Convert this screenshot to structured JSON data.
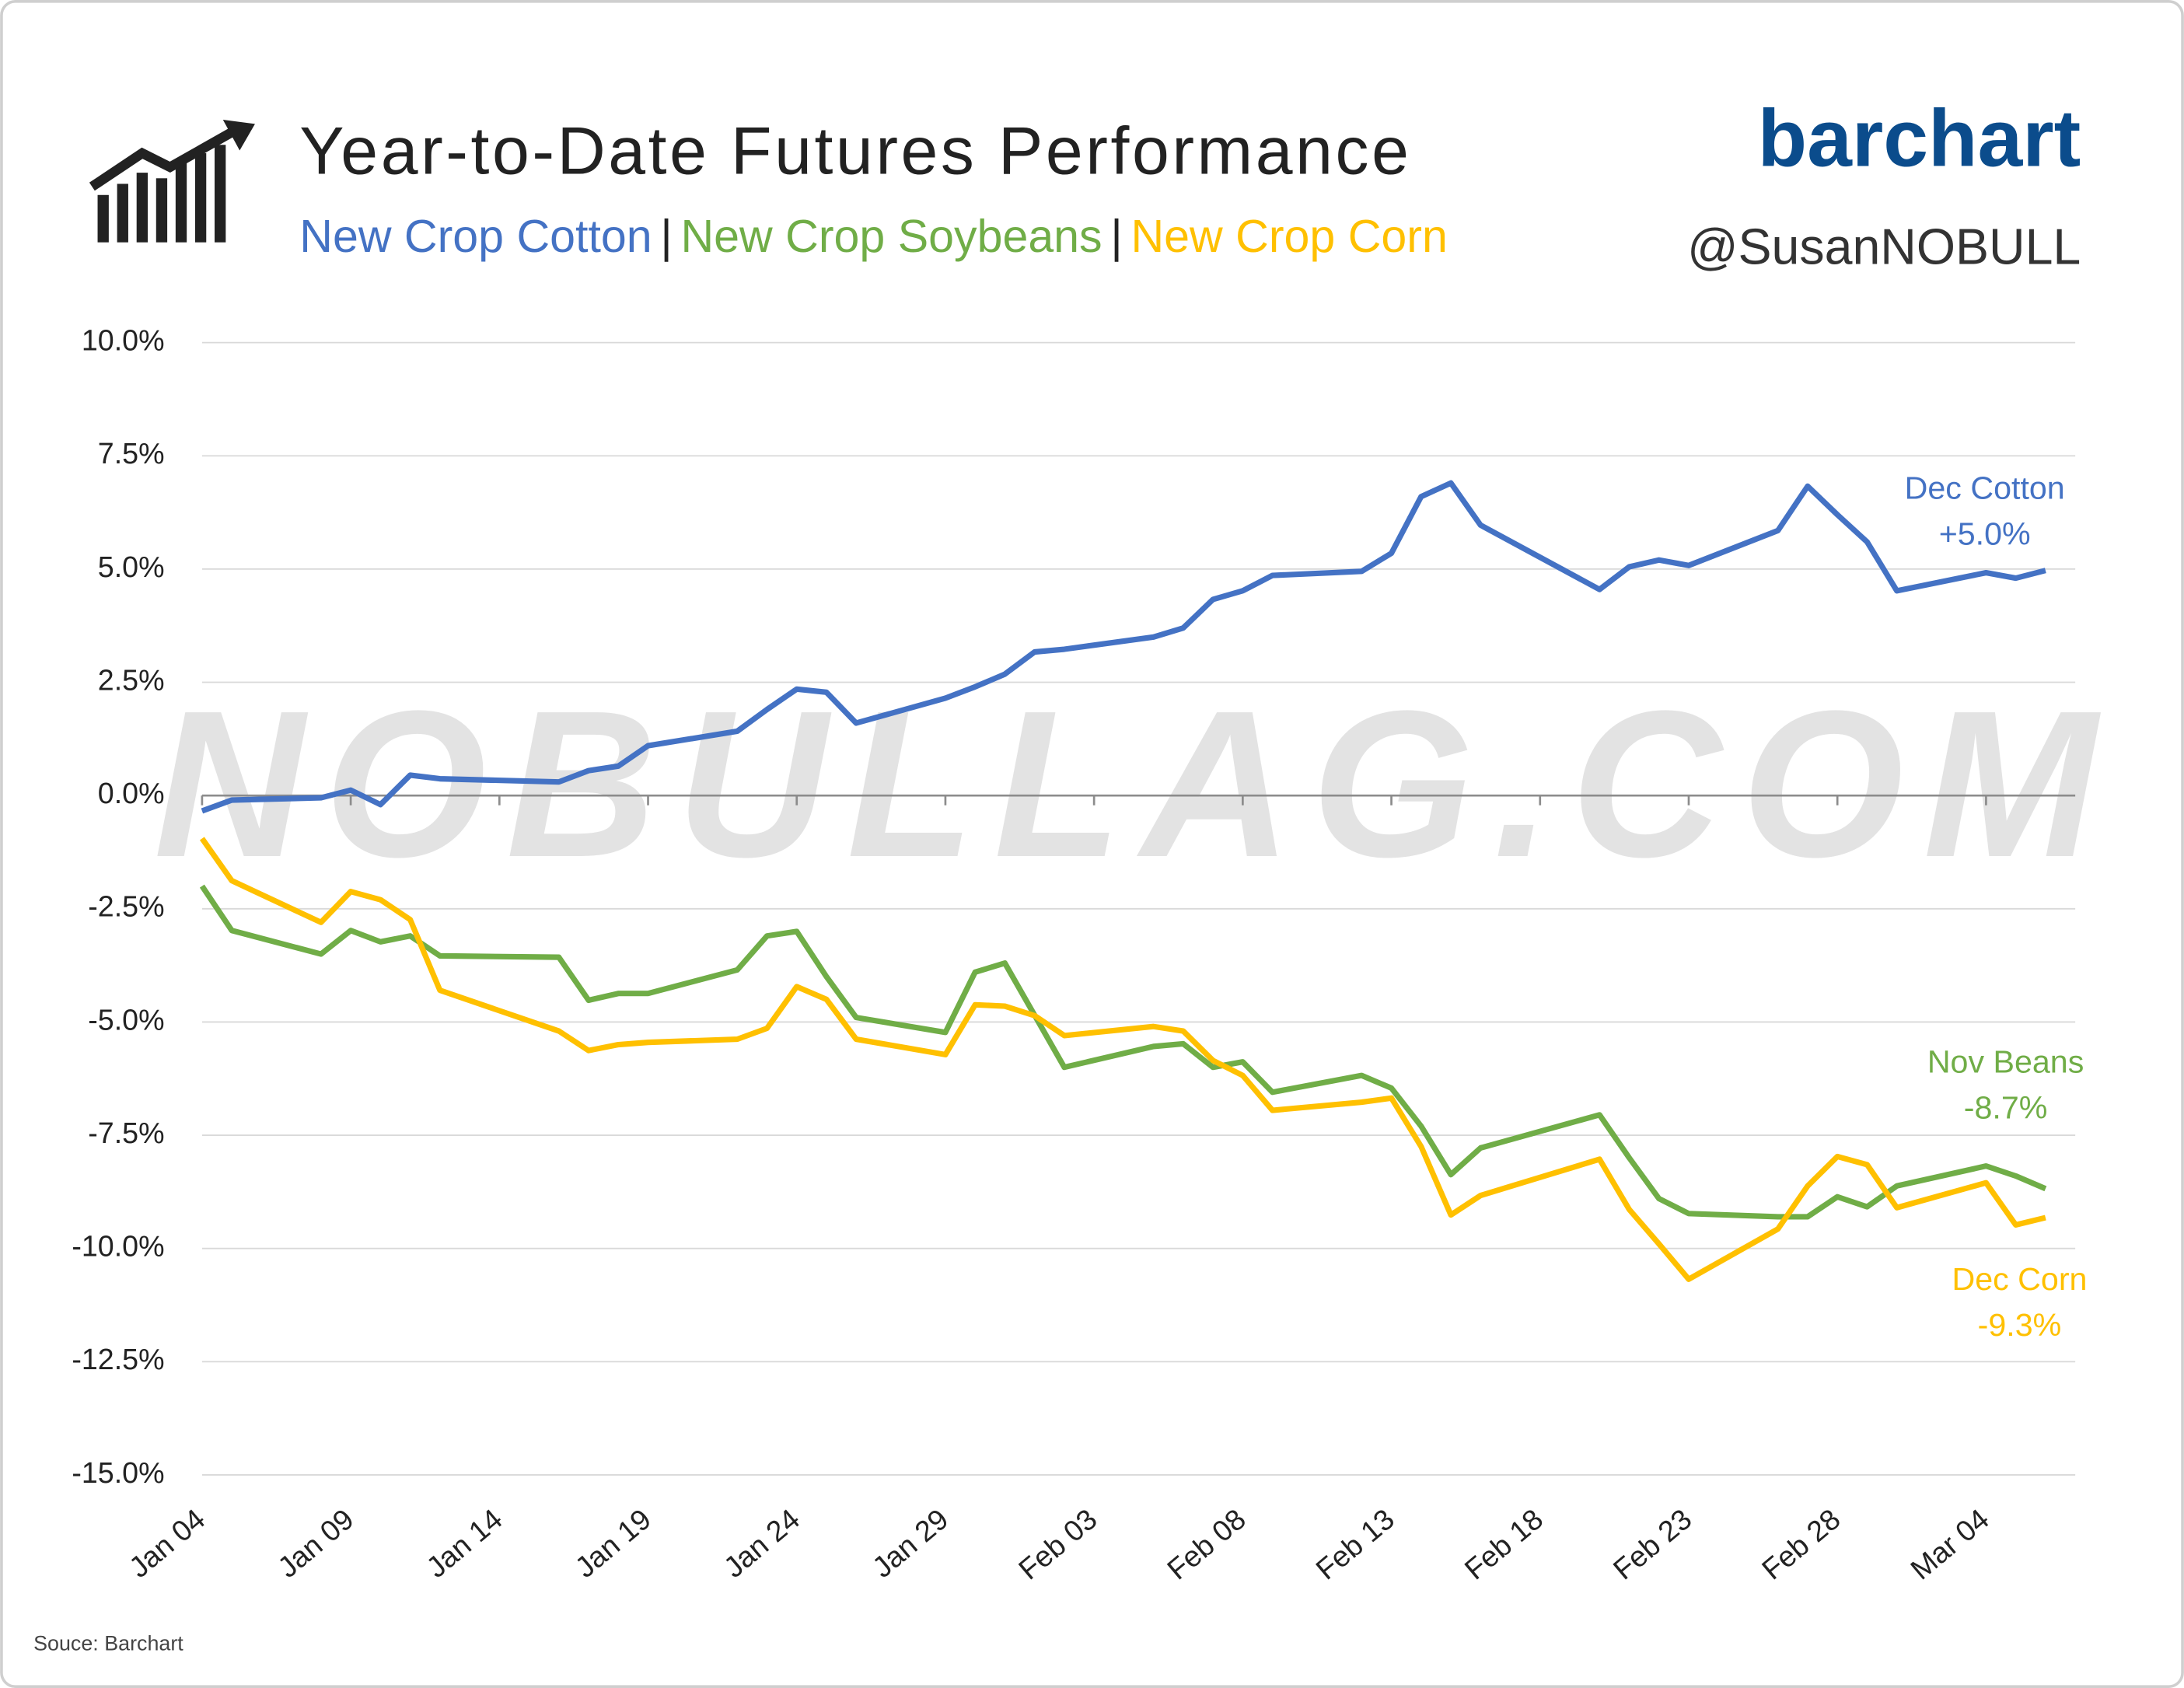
{
  "chart_data": {
    "type": "line",
    "title": "Year-to-Date Futures Performance",
    "legend_separator": "|",
    "brand": "barchart",
    "handle": "@SusanNOBULL",
    "watermark": "NOBULLAG.COM",
    "source": "Souce: Barchart",
    "grid": true,
    "x": [
      "Jan 04",
      "Jan 05",
      "Jan 08",
      "Jan 09",
      "Jan 10",
      "Jan 11",
      "Jan 12",
      "Jan 16",
      "Jan 17",
      "Jan 18",
      "Jan 19",
      "Jan 22",
      "Jan 23",
      "Jan 24",
      "Jan 25",
      "Jan 26",
      "Jan 29",
      "Jan 30",
      "Jan 31",
      "Feb 01",
      "Feb 02",
      "Feb 05",
      "Feb 06",
      "Feb 07",
      "Feb 08",
      "Feb 09",
      "Feb 12",
      "Feb 13",
      "Feb 14",
      "Feb 15",
      "Feb 16",
      "Feb 20",
      "Feb 21",
      "Feb 22",
      "Feb 23",
      "Feb 26",
      "Feb 27",
      "Feb 28",
      "Feb 29",
      "Mar 01",
      "Mar 04",
      "Mar 05",
      "Mar 06"
    ],
    "xlim": [
      "Jan 04",
      "Mar 07"
    ],
    "xticks": [
      "Jan 04",
      "Jan 09",
      "Jan 14",
      "Jan 19",
      "Jan 24",
      "Jan 29",
      "Feb 03",
      "Feb 08",
      "Feb 13",
      "Feb 18",
      "Feb 23",
      "Feb 28",
      "Mar 04"
    ],
    "ylim": [
      -15,
      10
    ],
    "yticks": [
      {
        "value": -15,
        "label": "-15.0%"
      },
      {
        "value": -12.5,
        "label": "-12.5%"
      },
      {
        "value": -10,
        "label": "-10.0%"
      },
      {
        "value": -7.5,
        "label": "-7.5%"
      },
      {
        "value": -5,
        "label": "-5.0%"
      },
      {
        "value": -2.5,
        "label": "-2.5%"
      },
      {
        "value": 0,
        "label": "0.0%"
      },
      {
        "value": 2.5,
        "label": "2.5%"
      },
      {
        "value": 5,
        "label": "5.0%"
      },
      {
        "value": 7.5,
        "label": "7.5%"
      },
      {
        "value": 10,
        "label": "10.0%"
      }
    ],
    "series": [
      {
        "name": "New Crop Cotton",
        "color": "#4472c4",
        "end_label": "Dec Cotton",
        "end_value_label": "+5.0%",
        "values": [
          -0.34,
          -0.1,
          -0.05,
          0.12,
          -0.2,
          0.45,
          0.37,
          0.3,
          0.55,
          0.65,
          1.1,
          1.42,
          1.9,
          2.35,
          2.28,
          1.6,
          2.15,
          2.4,
          2.68,
          3.17,
          3.23,
          3.5,
          3.7,
          4.33,
          4.52,
          4.86,
          4.95,
          5.35,
          6.6,
          6.9,
          5.97,
          4.55,
          5.05,
          5.2,
          5.08,
          5.85,
          6.83,
          6.2,
          5.6,
          4.52,
          4.92,
          4.8,
          4.97
        ]
      },
      {
        "name": "New Crop Soybeans",
        "color": "#70ad47",
        "end_label": "Nov Beans",
        "end_value_label": "-8.7%",
        "values": [
          -2.0,
          -2.98,
          -3.5,
          -2.98,
          -3.23,
          -3.1,
          -3.54,
          -3.57,
          -4.52,
          -4.37,
          -4.37,
          -3.85,
          -3.1,
          -3.0,
          -4.0,
          -4.9,
          -5.23,
          -3.9,
          -3.7,
          -4.85,
          -6.0,
          -5.54,
          -5.48,
          -6.0,
          -5.88,
          -6.55,
          -6.18,
          -6.46,
          -7.3,
          -8.37,
          -7.78,
          -7.05,
          -8.0,
          -8.9,
          -9.23,
          -9.3,
          -9.3,
          -8.86,
          -9.08,
          -8.62,
          -8.18,
          -8.4,
          -8.68
        ]
      },
      {
        "name": "New Crop Corn",
        "color": "#ffc000",
        "end_label": "Dec Corn",
        "end_value_label": "-9.3%",
        "values": [
          -0.95,
          -1.88,
          -2.8,
          -2.12,
          -2.3,
          -2.74,
          -4.3,
          -5.2,
          -5.63,
          -5.5,
          -5.45,
          -5.38,
          -5.14,
          -4.22,
          -4.5,
          -5.38,
          -5.72,
          -4.62,
          -4.65,
          -4.86,
          -5.3,
          -5.1,
          -5.2,
          -5.85,
          -6.18,
          -6.95,
          -6.77,
          -6.68,
          -7.75,
          -9.26,
          -8.83,
          -8.03,
          -9.14,
          -9.9,
          -10.68,
          -9.57,
          -8.62,
          -7.97,
          -8.15,
          -9.1,
          -8.55,
          -9.48,
          -9.32
        ]
      }
    ]
  }
}
